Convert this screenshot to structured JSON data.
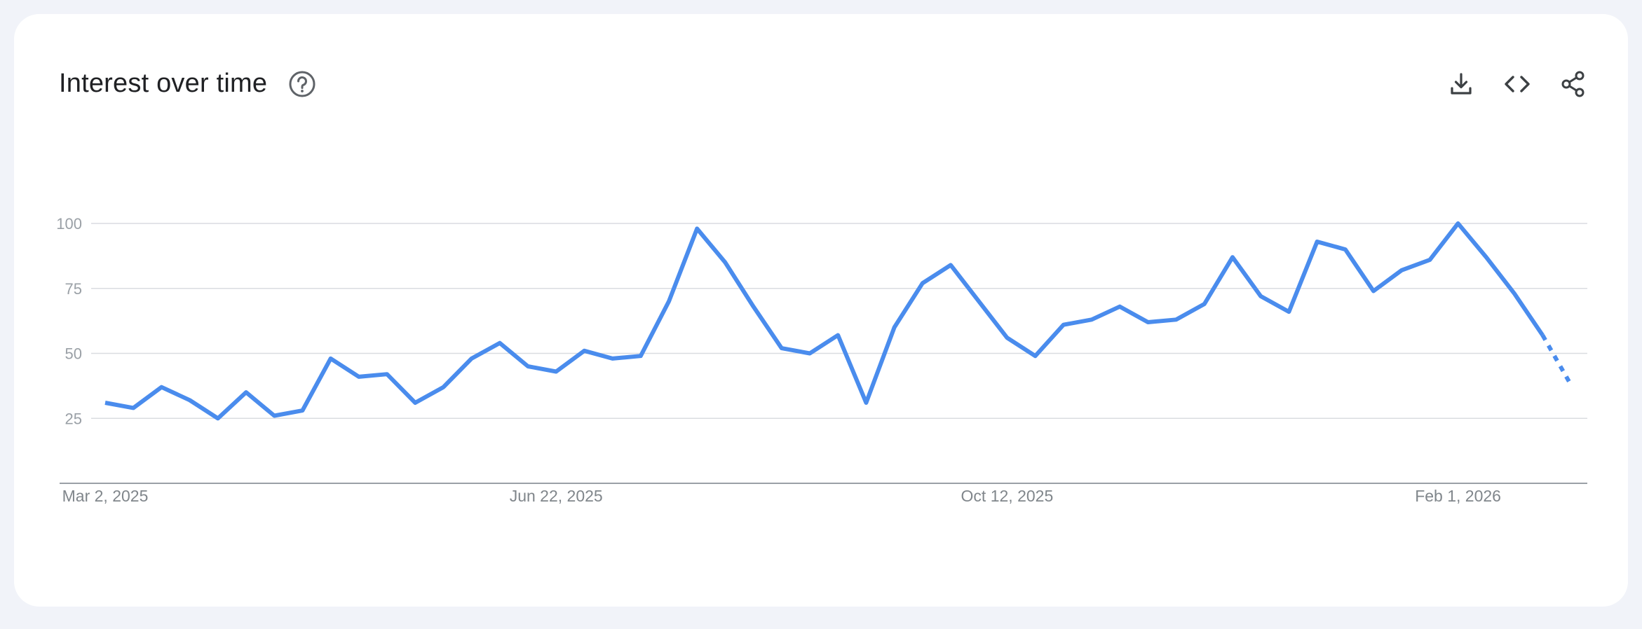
{
  "header": {
    "title": "Interest over time",
    "help_icon": "help-circle-icon"
  },
  "actions": [
    {
      "name": "download-button",
      "icon": "download-icon"
    },
    {
      "name": "embed-button",
      "icon": "code-icon"
    },
    {
      "name": "share-button",
      "icon": "share-icon"
    }
  ],
  "colors": {
    "line": "#4a8ced",
    "grid": "#dadce0",
    "axis": "#9aa0a6"
  },
  "chart_data": {
    "type": "line",
    "ylim": [
      0,
      100
    ],
    "y_ticks": [
      25,
      50,
      75,
      100
    ],
    "grid": true,
    "x_tick_labels": [
      "Mar 2, 2025",
      "Jun 22, 2025",
      "Oct 12, 2025",
      "Feb 1, 2026"
    ],
    "x_tick_indices": [
      0,
      16,
      32,
      48
    ],
    "values": [
      31,
      29,
      37,
      32,
      25,
      35,
      26,
      28,
      48,
      41,
      42,
      31,
      37,
      48,
      54,
      45,
      43,
      51,
      48,
      49,
      70,
      98,
      85,
      68,
      52,
      50,
      57,
      31,
      60,
      77,
      84,
      70,
      56,
      49,
      61,
      63,
      68,
      62,
      63,
      69,
      87,
      72,
      66,
      93,
      90,
      74,
      82,
      86,
      100,
      87,
      73,
      57,
      38
    ],
    "partial_from_index": 51
  }
}
